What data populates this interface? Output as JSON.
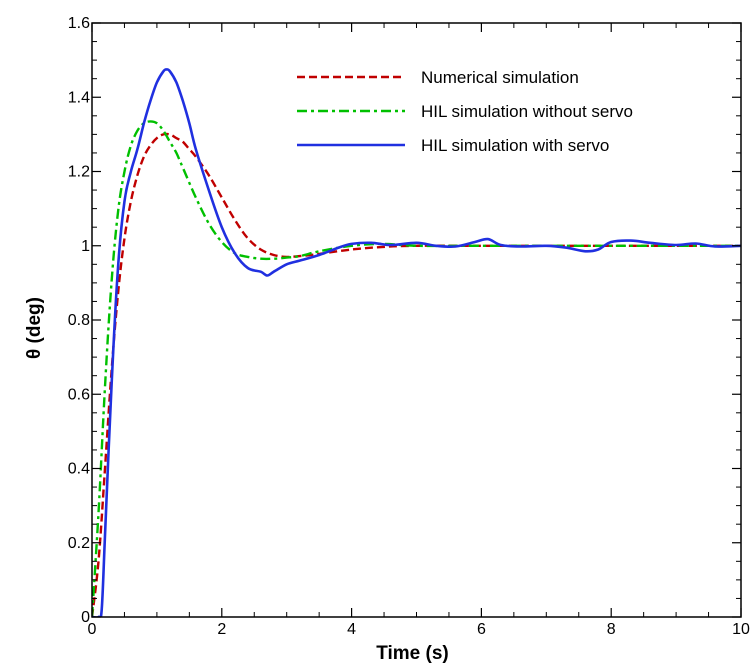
{
  "chart_data": {
    "type": "line",
    "title": "",
    "xlabel": "Time (s)",
    "ylabel": "θ (deg)",
    "xlim": [
      0,
      10
    ],
    "ylim": [
      0,
      1.6
    ],
    "xticks": [
      0,
      2,
      4,
      6,
      8,
      10
    ],
    "xtick_labels": [
      "0",
      "2",
      "4",
      "6",
      "8",
      "10"
    ],
    "yticks": [
      0,
      0.2,
      0.4,
      0.6,
      0.8,
      1.0,
      1.2,
      1.4,
      1.6
    ],
    "ytick_labels": [
      "0",
      "0.2",
      "0.4",
      "0.6",
      "0.8",
      "1",
      "1.2",
      "1.4",
      "1.6"
    ],
    "grid": false,
    "legend_position": "top-right",
    "series": [
      {
        "name": "Numerical simulation",
        "color": "#c00000",
        "style": "dashed",
        "x": [
          0,
          0.1,
          0.2,
          0.3,
          0.4,
          0.5,
          0.6,
          0.7,
          0.8,
          0.9,
          1.0,
          1.1,
          1.2,
          1.3,
          1.4,
          1.5,
          1.6,
          1.8,
          2.0,
          2.2,
          2.4,
          2.6,
          2.8,
          3.0,
          3.2,
          3.5,
          4.0,
          4.5,
          5.0,
          6.0,
          7.0,
          8.0,
          9.0,
          10.0
        ],
        "y": [
          0,
          0.15,
          0.4,
          0.66,
          0.87,
          1.02,
          1.12,
          1.19,
          1.24,
          1.27,
          1.29,
          1.3,
          1.3,
          1.29,
          1.28,
          1.26,
          1.24,
          1.19,
          1.13,
          1.07,
          1.02,
          0.99,
          0.975,
          0.97,
          0.972,
          0.978,
          0.99,
          0.997,
          1.0,
          1.0,
          1.0,
          1.0,
          1.0,
          1.0
        ]
      },
      {
        "name": "HIL simulation without servo",
        "color": "#00c000",
        "style": "dash-dot",
        "x": [
          0,
          0.1,
          0.2,
          0.3,
          0.4,
          0.5,
          0.6,
          0.7,
          0.8,
          0.9,
          1.0,
          1.1,
          1.2,
          1.3,
          1.4,
          1.6,
          1.8,
          2.0,
          2.2,
          2.4,
          2.6,
          2.8,
          3.0,
          3.2,
          3.5,
          4.0,
          4.5,
          5.0,
          6.0,
          7.0,
          8.0,
          9.0,
          10.0
        ],
        "y": [
          0,
          0.28,
          0.62,
          0.9,
          1.09,
          1.2,
          1.27,
          1.31,
          1.33,
          1.335,
          1.33,
          1.31,
          1.28,
          1.25,
          1.21,
          1.13,
          1.06,
          1.01,
          0.98,
          0.97,
          0.965,
          0.965,
          0.968,
          0.972,
          0.985,
          1.0,
          1.005,
          1.0,
          1.0,
          1.0,
          1.0,
          1.0,
          1.0
        ]
      },
      {
        "name": "HIL simulation with servo",
        "color": "#2030e0",
        "style": "solid",
        "x": [
          0,
          0.1,
          0.15,
          0.2,
          0.3,
          0.4,
          0.5,
          0.6,
          0.7,
          0.8,
          0.9,
          1.0,
          1.1,
          1.15,
          1.2,
          1.3,
          1.4,
          1.5,
          1.6,
          1.8,
          2.0,
          2.2,
          2.4,
          2.6,
          2.7,
          2.8,
          3.0,
          3.2,
          3.5,
          3.8,
          4.0,
          4.3,
          4.6,
          5.0,
          5.3,
          5.6,
          5.9,
          6.1,
          6.3,
          6.6,
          7.0,
          7.3,
          7.6,
          7.8,
          8.0,
          8.3,
          8.6,
          9.0,
          9.3,
          9.6,
          10.0
        ],
        "y": [
          0,
          0.0,
          0.02,
          0.22,
          0.62,
          0.94,
          1.12,
          1.2,
          1.26,
          1.33,
          1.39,
          1.44,
          1.47,
          1.475,
          1.47,
          1.44,
          1.39,
          1.33,
          1.26,
          1.15,
          1.05,
          0.98,
          0.94,
          0.93,
          0.92,
          0.93,
          0.95,
          0.96,
          0.975,
          0.995,
          1.005,
          1.008,
          1.002,
          1.008,
          1.0,
          0.998,
          1.01,
          1.018,
          1.002,
          0.998,
          1.0,
          0.995,
          0.985,
          0.99,
          1.01,
          1.014,
          1.008,
          1.002,
          1.006,
          0.998,
          1.0
        ]
      }
    ]
  }
}
